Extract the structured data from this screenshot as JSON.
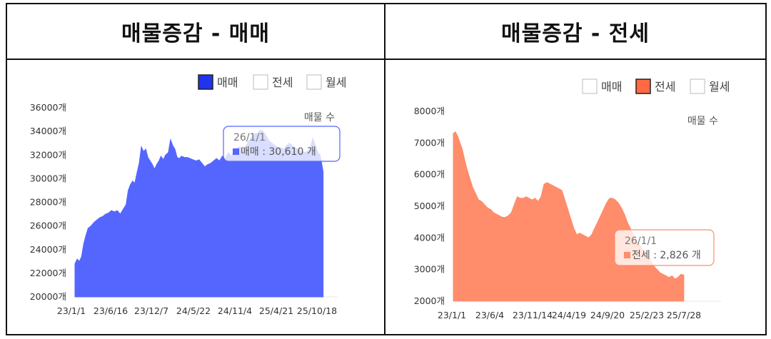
{
  "panels": [
    {
      "title": "매물증감 - 매매",
      "legend": [
        "매매",
        "전세",
        "월세"
      ],
      "active_legend": 0,
      "color": "#5566ff",
      "legend_fill": "#2233ee",
      "corner_label": "매물 수",
      "tooltip": {
        "date": "26/1/1",
        "series": "매매",
        "value_text": "30,610",
        "unit": "개"
      },
      "chart_data": {
        "type": "area",
        "ylim": [
          20000,
          36000
        ],
        "y_ticks": [
          "20000개",
          "22000개",
          "24000개",
          "26000개",
          "28000개",
          "30000개",
          "32000개",
          "34000개",
          "36000개"
        ],
        "x_ticks": [
          "23/1/1",
          "23/6/16",
          "23/12/7",
          "24/5/22",
          "24/11/4",
          "25/4/21",
          "25/10/18"
        ],
        "x_range": [
          0,
          36
        ],
        "series": [
          {
            "values": [
              [
                0,
                22800
              ],
              [
                0.3,
                23200
              ],
              [
                0.6,
                23000
              ],
              [
                0.9,
                23400
              ],
              [
                1.2,
                24500
              ],
              [
                1.5,
                25200
              ],
              [
                1.8,
                25800
              ],
              [
                2.2,
                26000
              ],
              [
                2.6,
                26300
              ],
              [
                3.0,
                26500
              ],
              [
                3.4,
                26700
              ],
              [
                3.8,
                26800
              ],
              [
                4.2,
                27000
              ],
              [
                4.6,
                27100
              ],
              [
                5.0,
                27300
              ],
              [
                5.4,
                27200
              ],
              [
                5.8,
                27300
              ],
              [
                6.2,
                27000
              ],
              [
                6.6,
                27400
              ],
              [
                7.0,
                27800
              ],
              [
                7.3,
                29000
              ],
              [
                7.6,
                29500
              ],
              [
                7.9,
                29800
              ],
              [
                8.2,
                29600
              ],
              [
                8.5,
                30500
              ],
              [
                8.8,
                31300
              ],
              [
                9.1,
                32700
              ],
              [
                9.4,
                32300
              ],
              [
                9.7,
                32500
              ],
              [
                10.0,
                31800
              ],
              [
                10.3,
                31500
              ],
              [
                10.6,
                31200
              ],
              [
                10.9,
                30800
              ],
              [
                11.2,
                31200
              ],
              [
                11.5,
                31500
              ],
              [
                11.8,
                31900
              ],
              [
                12.1,
                31600
              ],
              [
                12.4,
                32000
              ],
              [
                12.8,
                32200
              ],
              [
                13.1,
                33300
              ],
              [
                13.4,
                32800
              ],
              [
                13.7,
                32500
              ],
              [
                14.0,
                31800
              ],
              [
                14.3,
                31700
              ],
              [
                14.6,
                31900
              ],
              [
                15.0,
                31800
              ],
              [
                15.4,
                31800
              ],
              [
                15.8,
                31700
              ],
              [
                16.2,
                31600
              ],
              [
                16.6,
                31500
              ],
              [
                17.0,
                31600
              ],
              [
                17.4,
                31300
              ],
              [
                17.8,
                31000
              ],
              [
                18.2,
                31200
              ],
              [
                18.6,
                31300
              ],
              [
                19.0,
                31500
              ],
              [
                19.4,
                31700
              ],
              [
                19.8,
                31500
              ],
              [
                20.2,
                31900
              ],
              [
                20.6,
                31700
              ],
              [
                21.0,
                32200
              ],
              [
                21.4,
                31900
              ],
              [
                21.8,
                32300
              ],
              [
                22.2,
                32600
              ],
              [
                22.6,
                32700
              ],
              [
                23.0,
                32400
              ],
              [
                23.4,
                32700
              ],
              [
                23.8,
                33200
              ],
              [
                24.2,
                33500
              ],
              [
                24.6,
                33800
              ],
              [
                25.0,
                33800
              ],
              [
                25.4,
                34100
              ],
              [
                25.8,
                34000
              ],
              [
                26.2,
                33600
              ],
              [
                26.6,
                33200
              ],
              [
                27.0,
                33000
              ],
              [
                27.4,
                32800
              ],
              [
                27.8,
                32600
              ],
              [
                28.2,
                32600
              ],
              [
                28.6,
                32500
              ],
              [
                29.0,
                32800
              ],
              [
                29.4,
                33000
              ],
              [
                29.8,
                32800
              ],
              [
                30.2,
                32600
              ],
              [
                30.6,
                32500
              ],
              [
                31.0,
                32300
              ],
              [
                31.4,
                32200
              ],
              [
                31.8,
                32300
              ],
              [
                32.2,
                32500
              ],
              [
                32.6,
                33400
              ],
              [
                33.0,
                32700
              ],
              [
                33.3,
                32200
              ],
              [
                33.6,
                32000
              ],
              [
                34.0,
                30610
              ]
            ]
          }
        ]
      }
    },
    {
      "title": "매물증감 - 전세",
      "legend": [
        "매매",
        "전세",
        "월세"
      ],
      "active_legend": 1,
      "color": "#ff8c6b",
      "legend_fill": "#ff6a45",
      "corner_label": "매물 수",
      "tooltip": {
        "date": "26/1/1",
        "series": "전세",
        "value_text": "2,826",
        "unit": "개"
      },
      "chart_data": {
        "type": "area",
        "ylim": [
          2000,
          8000
        ],
        "y_ticks": [
          "2000개",
          "3000개",
          "4000개",
          "5000개",
          "6000개",
          "7000개",
          "8000개"
        ],
        "x_ticks": [
          "23/1/1",
          "23/6/4",
          "23/11/14",
          "24/4/19",
          "24/9/20",
          "25/2/23",
          "25/7/28"
        ],
        "x_range": [
          0,
          36
        ],
        "series": [
          {
            "values": [
              [
                0,
                7300
              ],
              [
                0.3,
                7350
              ],
              [
                0.6,
                7200
              ],
              [
                0.9,
                7000
              ],
              [
                1.2,
                6800
              ],
              [
                1.5,
                6500
              ],
              [
                1.8,
                6200
              ],
              [
                2.2,
                5900
              ],
              [
                2.6,
                5600
              ],
              [
                3.0,
                5400
              ],
              [
                3.4,
                5200
              ],
              [
                3.8,
                5150
              ],
              [
                4.2,
                5050
              ],
              [
                4.6,
                4950
              ],
              [
                5.0,
                4900
              ],
              [
                5.4,
                4800
              ],
              [
                5.8,
                4750
              ],
              [
                6.2,
                4700
              ],
              [
                6.6,
                4650
              ],
              [
                7.0,
                4650
              ],
              [
                7.4,
                4700
              ],
              [
                7.8,
                4800
              ],
              [
                8.2,
                5050
              ],
              [
                8.6,
                5300
              ],
              [
                9.0,
                5250
              ],
              [
                9.4,
                5250
              ],
              [
                9.8,
                5300
              ],
              [
                10.2,
                5250
              ],
              [
                10.6,
                5200
              ],
              [
                11.0,
                5250
              ],
              [
                11.4,
                5150
              ],
              [
                11.8,
                5300
              ],
              [
                12.2,
                5700
              ],
              [
                12.6,
                5750
              ],
              [
                13.0,
                5700
              ],
              [
                13.4,
                5650
              ],
              [
                13.8,
                5600
              ],
              [
                14.2,
                5550
              ],
              [
                14.6,
                5500
              ],
              [
                15.0,
                5200
              ],
              [
                15.4,
                4900
              ],
              [
                15.8,
                4600
              ],
              [
                16.2,
                4300
              ],
              [
                16.6,
                4100
              ],
              [
                17.0,
                4150
              ],
              [
                17.4,
                4100
              ],
              [
                17.8,
                4050
              ],
              [
                18.2,
                4000
              ],
              [
                18.6,
                4100
              ],
              [
                19.0,
                4300
              ],
              [
                19.4,
                4500
              ],
              [
                19.8,
                4700
              ],
              [
                20.2,
                4900
              ],
              [
                20.6,
                5100
              ],
              [
                21.0,
                5250
              ],
              [
                21.4,
                5250
              ],
              [
                21.8,
                5200
              ],
              [
                22.2,
                5100
              ],
              [
                22.6,
                4950
              ],
              [
                23.0,
                4750
              ],
              [
                23.4,
                4500
              ],
              [
                23.8,
                4300
              ],
              [
                24.2,
                4100
              ],
              [
                24.6,
                3950
              ],
              [
                25.0,
                3800
              ],
              [
                25.4,
                3650
              ],
              [
                25.8,
                3550
              ],
              [
                26.2,
                3400
              ],
              [
                26.6,
                3250
              ],
              [
                27.0,
                3100
              ],
              [
                27.4,
                3000
              ],
              [
                27.8,
                2900
              ],
              [
                28.2,
                2850
              ],
              [
                28.6,
                2800
              ],
              [
                29.0,
                2750
              ],
              [
                29.4,
                2800
              ],
              [
                29.8,
                2700
              ],
              [
                30.2,
                2750
              ],
              [
                30.6,
                2850
              ],
              [
                31.0,
                2826
              ]
            ]
          }
        ]
      }
    }
  ]
}
